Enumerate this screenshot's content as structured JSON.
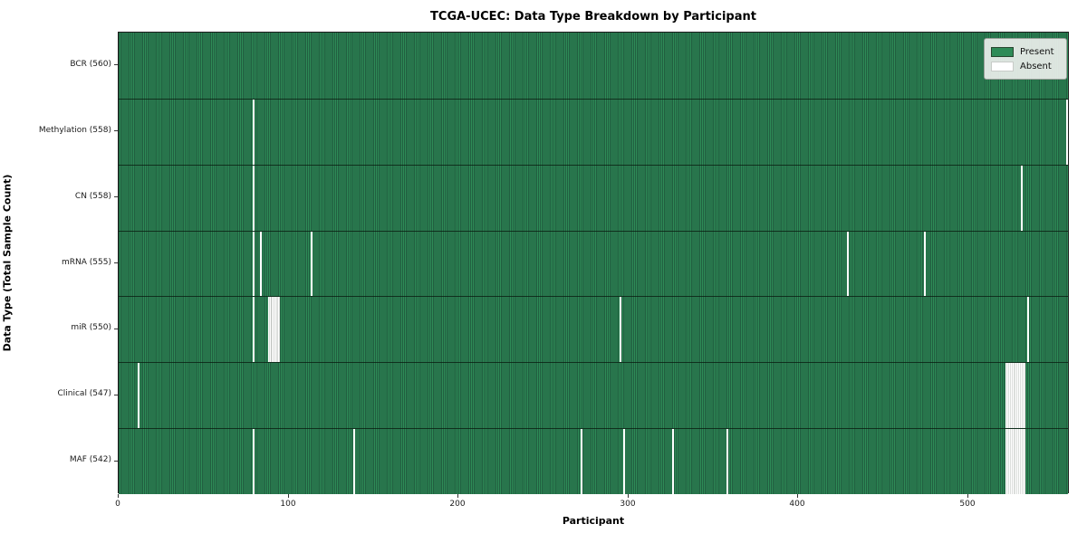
{
  "title": "TCGA-UCEC: Data Type Breakdown by Participant",
  "axes": {
    "xlabel": "Participant",
    "ylabel": "Data Type (Total Sample Count)"
  },
  "legend": {
    "present_label": "Present",
    "absent_label": "Absent"
  },
  "colors": {
    "present": "#2e8b57",
    "present_dark_line": "#215f40",
    "absent": "#ffffff",
    "cluster_separator": "#b9bdb9"
  },
  "chart_data": {
    "type": "heatmap",
    "title": "TCGA-UCEC: Data Type Breakdown by Participant",
    "xlabel": "Participant",
    "ylabel": "Data Type (Total Sample Count)",
    "x_max": 560,
    "x_ticks": [
      0,
      100,
      200,
      300,
      400,
      500
    ],
    "legend_entries": [
      "Present",
      "Absent"
    ],
    "legend_position": "upper right",
    "grid": false,
    "rows": [
      {
        "label": "BCR (560)",
        "data_type": "BCR",
        "present_count": 560,
        "absent_runs": []
      },
      {
        "label": "Methylation (558)",
        "data_type": "Methylation",
        "present_count": 558,
        "absent_runs": [
          [
            79,
            1
          ],
          [
            558,
            1
          ]
        ]
      },
      {
        "label": "CN (558)",
        "data_type": "CN",
        "present_count": 558,
        "absent_runs": [
          [
            79,
            1
          ],
          [
            531,
            1
          ]
        ]
      },
      {
        "label": "mRNA (555)",
        "data_type": "mRNA",
        "present_count": 555,
        "absent_runs": [
          [
            79,
            1
          ],
          [
            83,
            1
          ],
          [
            113,
            1
          ],
          [
            429,
            1
          ],
          [
            474,
            1
          ]
        ]
      },
      {
        "label": "miR (550)",
        "data_type": "miR",
        "present_count": 550,
        "absent_runs": [
          [
            79,
            1
          ],
          [
            88,
            7
          ],
          [
            295,
            1
          ],
          [
            535,
            1
          ]
        ]
      },
      {
        "label": "Clinical (547)",
        "data_type": "Clinical",
        "present_count": 547,
        "absent_runs": [
          [
            11,
            1
          ],
          [
            522,
            12
          ]
        ]
      },
      {
        "label": "MAF (542)",
        "data_type": "MAF",
        "present_count": 542,
        "absent_runs": [
          [
            79,
            1
          ],
          [
            138,
            1
          ],
          [
            272,
            1
          ],
          [
            297,
            1
          ],
          [
            326,
            1
          ],
          [
            358,
            1
          ],
          [
            522,
            12
          ]
        ]
      }
    ]
  }
}
